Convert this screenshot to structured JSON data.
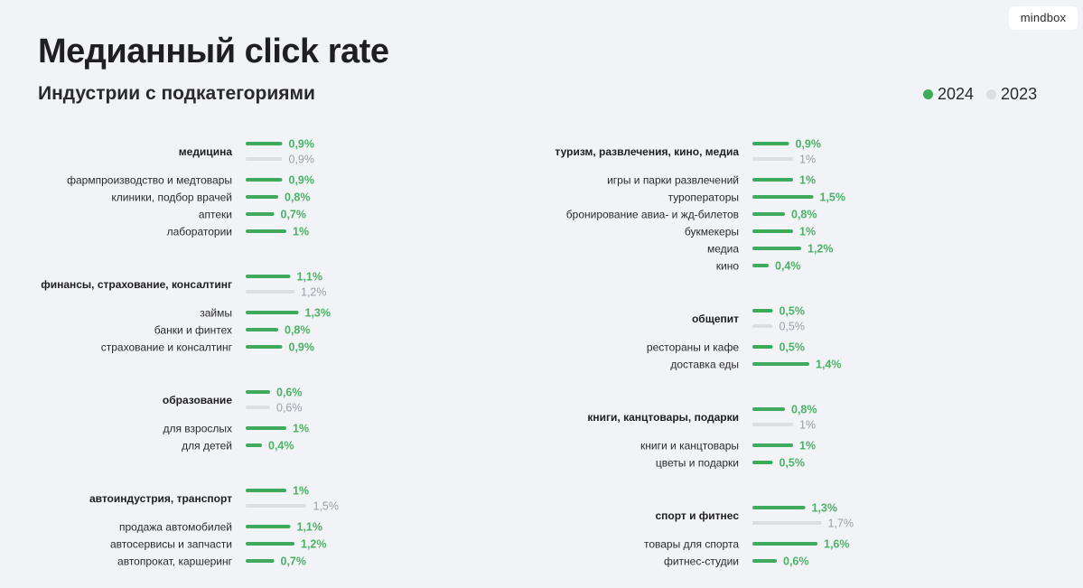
{
  "header": {
    "title": "Медианный click rate",
    "subtitle": "Индустрии с подкатегориями",
    "logo": "mindbox"
  },
  "legend": [
    {
      "label": "2024",
      "color": "#3daa5c"
    },
    {
      "label": "2023",
      "color": "#dcdee3"
    }
  ],
  "chart_data": {
    "type": "bar",
    "orientation": "horizontal",
    "unit": "%",
    "colors": {
      "2024": "#3daa5c",
      "2023": "#dcdee3"
    },
    "columns": [
      [
        {
          "name": "медицина",
          "v2024": 0.9,
          "v2023": 0.9,
          "l2024": "0,9%",
          "l2023": "0,9%",
          "sub": [
            {
              "name": "фармпроизводство и медтовары",
              "value": 0.9,
              "label": "0,9%"
            },
            {
              "name": "клиники, подбор врачей",
              "value": 0.8,
              "label": "0,8%"
            },
            {
              "name": "аптеки",
              "value": 0.7,
              "label": "0,7%"
            },
            {
              "name": "лаборатории",
              "value": 1.0,
              "label": "1%"
            }
          ]
        },
        {
          "name": "финансы, страхование, консалтинг",
          "v2024": 1.1,
          "v2023": 1.2,
          "l2024": "1,1%",
          "l2023": "1,2%",
          "sub": [
            {
              "name": "займы",
              "value": 1.3,
              "label": "1,3%"
            },
            {
              "name": "банки и финтех",
              "value": 0.8,
              "label": "0,8%"
            },
            {
              "name": "страхование и консалтинг",
              "value": 0.9,
              "label": "0,9%"
            }
          ]
        },
        {
          "name": "образование",
          "v2024": 0.6,
          "v2023": 0.6,
          "l2024": "0,6%",
          "l2023": "0,6%",
          "sub": [
            {
              "name": "для взрослых",
              "value": 1.0,
              "label": "1%"
            },
            {
              "name": "для детей",
              "value": 0.4,
              "label": "0,4%"
            }
          ]
        },
        {
          "name": "автоиндустрия, транспорт",
          "v2024": 1.0,
          "v2023": 1.5,
          "l2024": "1%",
          "l2023": "1,5%",
          "sub": [
            {
              "name": "продажа автомобилей",
              "value": 1.1,
              "label": "1,1%"
            },
            {
              "name": "автосервисы и запчасти",
              "value": 1.2,
              "label": "1,2%"
            },
            {
              "name": "автопрокат, каршеринг",
              "value": 0.7,
              "label": "0,7%"
            }
          ]
        }
      ],
      [
        {
          "name": "туризм, развлечения, кино, медиа",
          "v2024": 0.9,
          "v2023": 1.0,
          "l2024": "0,9%",
          "l2023": "1%",
          "sub": [
            {
              "name": "игры и парки развлечений",
              "value": 1.0,
              "label": "1%"
            },
            {
              "name": "туроператоры",
              "value": 1.5,
              "label": "1,5%"
            },
            {
              "name": "бронирование авиа- и жд-билетов",
              "value": 0.8,
              "label": "0,8%"
            },
            {
              "name": "букмекеры",
              "value": 1.0,
              "label": "1%"
            },
            {
              "name": "медиа",
              "value": 1.2,
              "label": "1,2%"
            },
            {
              "name": "кино",
              "value": 0.4,
              "label": "0,4%"
            }
          ]
        },
        {
          "name": "общепит",
          "v2024": 0.5,
          "v2023": 0.5,
          "l2024": "0,5%",
          "l2023": "0,5%",
          "sub": [
            {
              "name": "рестораны и кафе",
              "value": 0.5,
              "label": "0,5%"
            },
            {
              "name": "доставка еды",
              "value": 1.4,
              "label": "1,4%"
            }
          ]
        },
        {
          "name": "книги, канцтовары, подарки",
          "v2024": 0.8,
          "v2023": 1.0,
          "l2024": "0,8%",
          "l2023": "1%",
          "sub": [
            {
              "name": "книги и канцтовары",
              "value": 1.0,
              "label": "1%"
            },
            {
              "name": "цветы и подарки",
              "value": 0.5,
              "label": "0,5%"
            }
          ]
        },
        {
          "name": "спорт и фитнес",
          "v2024": 1.3,
          "v2023": 1.7,
          "l2024": "1,3%",
          "l2023": "1,7%",
          "sub": [
            {
              "name": "товары для спорта",
              "value": 1.6,
              "label": "1,6%"
            },
            {
              "name": "фитнес-студии",
              "value": 0.6,
              "label": "0,6%"
            }
          ]
        }
      ]
    ]
  }
}
